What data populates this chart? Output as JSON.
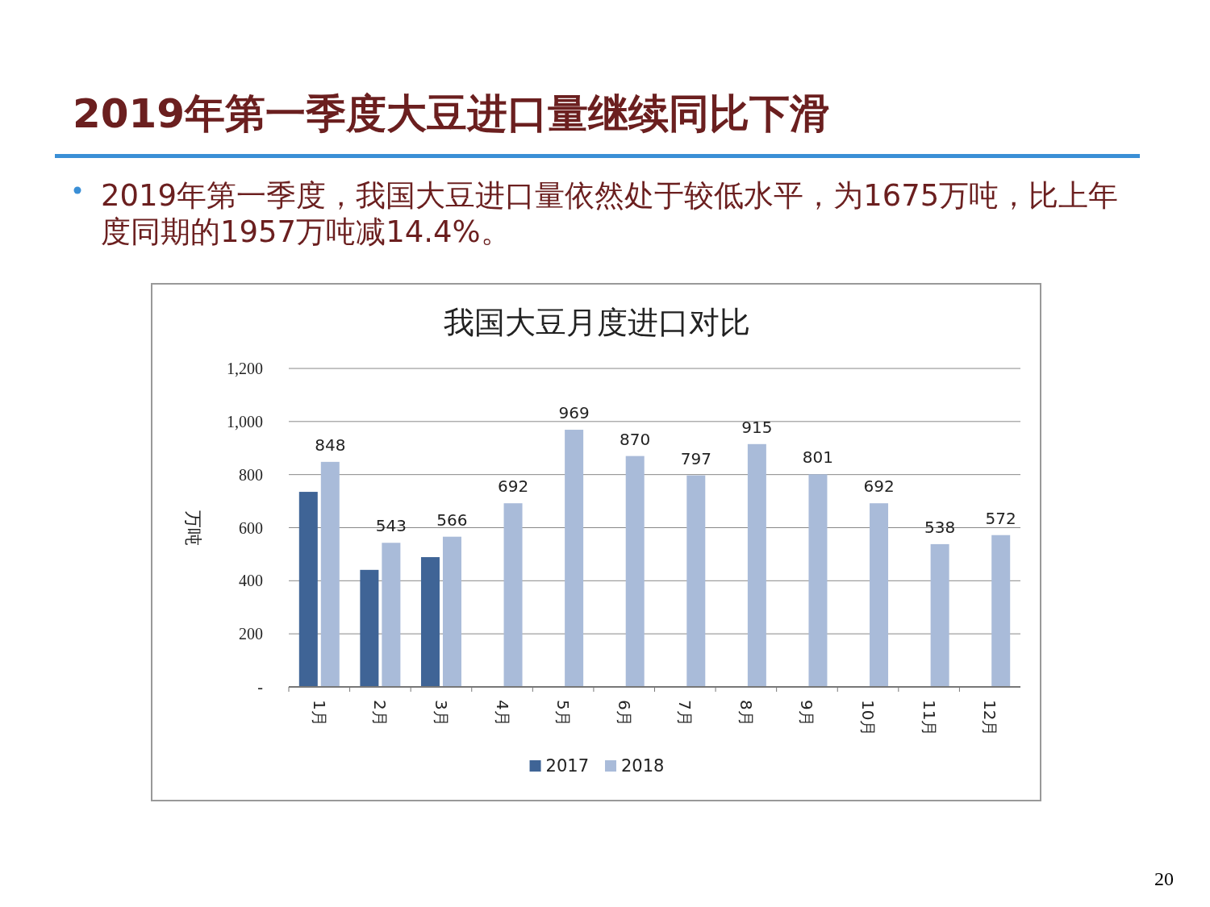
{
  "chart_data": {
    "type": "bar",
    "title": "2019年第一季度大豆进口量继续同比下滑",
    "subtitle": "我国大豆月度进口对比",
    "annotations": [
      "2019年第一季度，我国大豆进口量依然处于较低水平，为1675万吨，比上年度同期的1957万吨减14.4%。",
      "20"
    ],
    "categories": [
      "1月",
      "2月",
      "3月",
      "4月",
      "5月",
      "6月",
      "7月",
      "8月",
      "9月",
      "10月",
      "11月",
      "12月"
    ],
    "series": [
      {
        "name": "2017",
        "color": "#3f6496",
        "values": [
          735,
          441,
          489,
          null,
          null,
          null,
          null,
          null,
          null,
          null,
          null,
          null
        ]
      },
      {
        "name": "2018",
        "color": "#a9bbd9",
        "values": [
          848,
          543,
          566,
          692,
          969,
          870,
          797,
          915,
          801,
          692,
          538,
          572
        ],
        "value_labels": [
          "848",
          "543",
          "566",
          "692",
          "969",
          "870",
          "797",
          "915",
          "801",
          "692",
          "538",
          "572"
        ]
      }
    ],
    "ylabel": "万吨",
    "ylim": [
      0,
      1200
    ],
    "yticks": [
      {
        "value": 0,
        "label": "-"
      },
      {
        "value": 200,
        "label": "200"
      },
      {
        "value": 400,
        "label": "400"
      },
      {
        "value": 600,
        "label": "600"
      },
      {
        "value": 800,
        "label": "800"
      },
      {
        "value": 1000,
        "label": "1,000"
      },
      {
        "value": 1200,
        "label": "1,200"
      }
    ],
    "grid": "y",
    "legend": "bottom"
  }
}
